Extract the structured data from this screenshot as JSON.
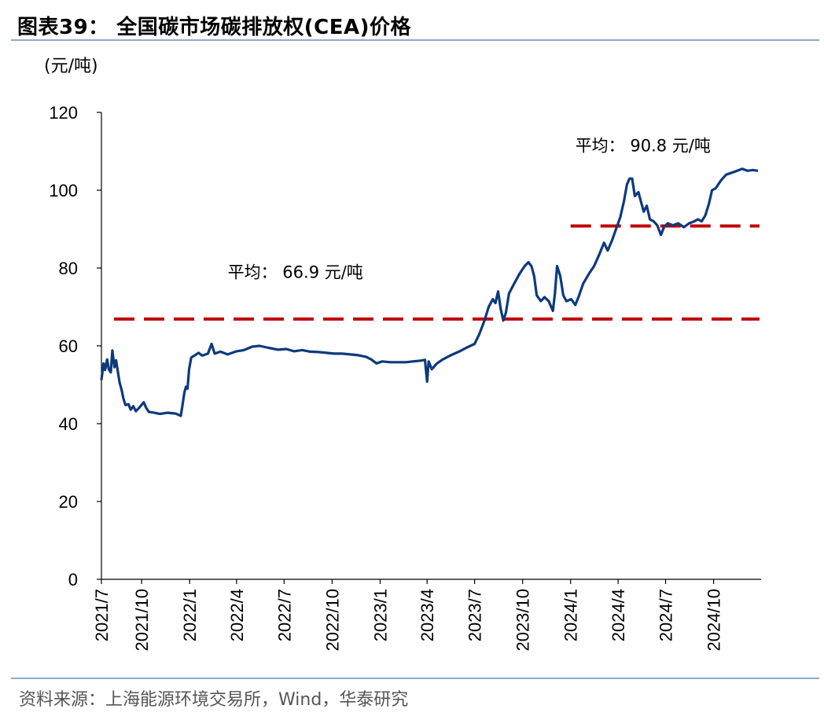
{
  "figure": {
    "title": "图表39：  全国碳市场碳排放权(CEA)价格",
    "source": "资料来源：上海能源环境交易所，Wind，华泰研究"
  },
  "chart_data": {
    "type": "line",
    "title": "",
    "ylabel": "(元/吨)",
    "xlabel": "",
    "ylim": [
      0,
      120
    ],
    "yticks": [
      0,
      20,
      40,
      60,
      80,
      100,
      120
    ],
    "xlim": [
      "2021-07-16",
      "2024-12-31"
    ],
    "xticks": [
      "2021/7",
      "2021/10",
      "2022/1",
      "2022/4",
      "2022/7",
      "2022/10",
      "2023/1",
      "2023/4",
      "2023/7",
      "2023/10",
      "2024/1",
      "2024/4",
      "2024/7",
      "2024/10"
    ],
    "xtick_dates": [
      "2021-07-01",
      "2021-10-01",
      "2022-01-01",
      "2022-04-01",
      "2022-07-01",
      "2022-10-01",
      "2023-01-01",
      "2023-04-01",
      "2023-07-01",
      "2023-10-01",
      "2024-01-01",
      "2024-04-01",
      "2024-07-01",
      "2024-10-01"
    ],
    "grid": false,
    "series": [
      {
        "color": "#0d3a7d",
        "points": [
          [
            "2021-07-16",
            51.2
          ],
          [
            "2021-07-20",
            55.5
          ],
          [
            "2021-07-23",
            53.8
          ],
          [
            "2021-07-27",
            56.5
          ],
          [
            "2021-07-30",
            54.0
          ],
          [
            "2021-08-03",
            53.2
          ],
          [
            "2021-08-06",
            58.8
          ],
          [
            "2021-08-10",
            54.5
          ],
          [
            "2021-08-13",
            56.3
          ],
          [
            "2021-08-17",
            53.0
          ],
          [
            "2021-08-20",
            50.5
          ],
          [
            "2021-08-24",
            48.5
          ],
          [
            "2021-08-27",
            46.5
          ],
          [
            "2021-08-31",
            44.8
          ],
          [
            "2021-09-06",
            45.0
          ],
          [
            "2021-09-10",
            43.6
          ],
          [
            "2021-09-15",
            44.5
          ],
          [
            "2021-09-20",
            43.2
          ],
          [
            "2021-09-27",
            44.2
          ],
          [
            "2021-10-05",
            45.5
          ],
          [
            "2021-10-10",
            44.0
          ],
          [
            "2021-10-15",
            43.0
          ],
          [
            "2021-10-25",
            42.8
          ],
          [
            "2021-11-05",
            42.5
          ],
          [
            "2021-11-20",
            42.8
          ],
          [
            "2021-12-05",
            42.6
          ],
          [
            "2021-12-15",
            42.0
          ],
          [
            "2021-12-18",
            44.5
          ],
          [
            "2021-12-22",
            48.0
          ],
          [
            "2021-12-25",
            49.5
          ],
          [
            "2021-12-28",
            49.0
          ],
          [
            "2021-12-31",
            54.0
          ],
          [
            "2022-01-04",
            57.0
          ],
          [
            "2022-01-10",
            57.5
          ],
          [
            "2022-01-18",
            58.2
          ],
          [
            "2022-01-25",
            57.5
          ],
          [
            "2022-02-05",
            58.0
          ],
          [
            "2022-02-12",
            60.5
          ],
          [
            "2022-02-18",
            58.0
          ],
          [
            "2022-03-01",
            58.5
          ],
          [
            "2022-03-15",
            57.8
          ],
          [
            "2022-04-01",
            58.6
          ],
          [
            "2022-04-15",
            58.9
          ],
          [
            "2022-05-01",
            59.8
          ],
          [
            "2022-05-15",
            60.0
          ],
          [
            "2022-06-01",
            59.5
          ],
          [
            "2022-06-20",
            59.0
          ],
          [
            "2022-07-05",
            59.2
          ],
          [
            "2022-07-20",
            58.6
          ],
          [
            "2022-08-05",
            58.9
          ],
          [
            "2022-08-20",
            58.5
          ],
          [
            "2022-09-05",
            58.4
          ],
          [
            "2022-09-20",
            58.2
          ],
          [
            "2022-10-05",
            58.0
          ],
          [
            "2022-10-20",
            58.0
          ],
          [
            "2022-11-05",
            57.8
          ],
          [
            "2022-11-20",
            57.6
          ],
          [
            "2022-12-05",
            57.2
          ],
          [
            "2022-12-15",
            56.5
          ],
          [
            "2022-12-25",
            55.5
          ],
          [
            "2023-01-05",
            56.0
          ],
          [
            "2023-01-20",
            55.8
          ],
          [
            "2023-02-05",
            55.8
          ],
          [
            "2023-02-20",
            55.8
          ],
          [
            "2023-03-05",
            56.0
          ],
          [
            "2023-03-20",
            56.2
          ],
          [
            "2023-03-28",
            56.4
          ],
          [
            "2023-04-01",
            50.8
          ],
          [
            "2023-04-04",
            56.0
          ],
          [
            "2023-04-10",
            54.0
          ],
          [
            "2023-04-20",
            55.5
          ],
          [
            "2023-05-01",
            56.5
          ],
          [
            "2023-05-15",
            57.5
          ],
          [
            "2023-06-01",
            58.5
          ],
          [
            "2023-06-15",
            59.5
          ],
          [
            "2023-07-01",
            60.5
          ],
          [
            "2023-07-10",
            63.0
          ],
          [
            "2023-07-20",
            66.5
          ],
          [
            "2023-07-28",
            70.0
          ],
          [
            "2023-08-05",
            72.0
          ],
          [
            "2023-08-10",
            71.0
          ],
          [
            "2023-08-15",
            74.0
          ],
          [
            "2023-08-20",
            69.5
          ],
          [
            "2023-08-25",
            66.5
          ],
          [
            "2023-08-30",
            68.5
          ],
          [
            "2023-09-05",
            73.5
          ],
          [
            "2023-09-15",
            76.0
          ],
          [
            "2023-09-25",
            78.5
          ],
          [
            "2023-10-05",
            80.5
          ],
          [
            "2023-10-12",
            81.5
          ],
          [
            "2023-10-18",
            80.5
          ],
          [
            "2023-10-23",
            78.0
          ],
          [
            "2023-10-28",
            73.0
          ],
          [
            "2023-11-05",
            71.5
          ],
          [
            "2023-11-12",
            72.5
          ],
          [
            "2023-11-20",
            71.5
          ],
          [
            "2023-11-28",
            69.0
          ],
          [
            "2023-12-02",
            73.5
          ],
          [
            "2023-12-06",
            80.5
          ],
          [
            "2023-12-12",
            78.0
          ],
          [
            "2023-12-18",
            73.0
          ],
          [
            "2023-12-24",
            71.5
          ],
          [
            "2024-01-02",
            72.0
          ],
          [
            "2024-01-10",
            70.5
          ],
          [
            "2024-01-16",
            72.5
          ],
          [
            "2024-01-25",
            76.0
          ],
          [
            "2024-02-05",
            78.5
          ],
          [
            "2024-02-15",
            80.5
          ],
          [
            "2024-02-25",
            83.5
          ],
          [
            "2024-03-05",
            86.5
          ],
          [
            "2024-03-12",
            84.5
          ],
          [
            "2024-03-20",
            87.0
          ],
          [
            "2024-03-28",
            90.0
          ],
          [
            "2024-04-05",
            93.0
          ],
          [
            "2024-04-12",
            97.0
          ],
          [
            "2024-04-18",
            101.5
          ],
          [
            "2024-04-23",
            103.0
          ],
          [
            "2024-04-28",
            103.0
          ],
          [
            "2024-05-03",
            98.5
          ],
          [
            "2024-05-10",
            99.5
          ],
          [
            "2024-05-15",
            97.0
          ],
          [
            "2024-05-20",
            94.5
          ],
          [
            "2024-05-26",
            96.0
          ],
          [
            "2024-06-01",
            92.5
          ],
          [
            "2024-06-08",
            92.0
          ],
          [
            "2024-06-15",
            91.0
          ],
          [
            "2024-06-22",
            88.5
          ],
          [
            "2024-06-28",
            90.5
          ],
          [
            "2024-07-05",
            91.5
          ],
          [
            "2024-07-15",
            91.0
          ],
          [
            "2024-07-25",
            91.5
          ],
          [
            "2024-08-05",
            90.5
          ],
          [
            "2024-08-15",
            91.5
          ],
          [
            "2024-08-25",
            92.0
          ],
          [
            "2024-09-01",
            92.5
          ],
          [
            "2024-09-08",
            92.0
          ],
          [
            "2024-09-15",
            93.5
          ],
          [
            "2024-09-22",
            96.5
          ],
          [
            "2024-09-28",
            100.0
          ],
          [
            "2024-10-05",
            100.5
          ],
          [
            "2024-10-15",
            102.5
          ],
          [
            "2024-10-25",
            104.0
          ],
          [
            "2024-11-05",
            104.5
          ],
          [
            "2024-11-15",
            105.0
          ],
          [
            "2024-11-25",
            105.5
          ],
          [
            "2024-12-05",
            105.0
          ],
          [
            "2024-12-15",
            105.2
          ],
          [
            "2024-12-25",
            105.0
          ]
        ]
      }
    ],
    "reference_lines": [
      {
        "value": 66.9,
        "x_from": "2021-07-16",
        "x_to": "2024-12-31",
        "color": "#c00000",
        "style": "dashed"
      },
      {
        "value": 90.8,
        "x_from": "2024-01-01",
        "x_to": "2024-12-31",
        "color": "#c00000",
        "style": "dashed"
      }
    ],
    "annotations": [
      {
        "text": "平均：  66.9  元/吨",
        "x": "2022-03-15",
        "y": 77.5
      },
      {
        "text": "平均：  90.8  元/吨",
        "x": "2024-01-10",
        "y": 110.0
      }
    ]
  }
}
